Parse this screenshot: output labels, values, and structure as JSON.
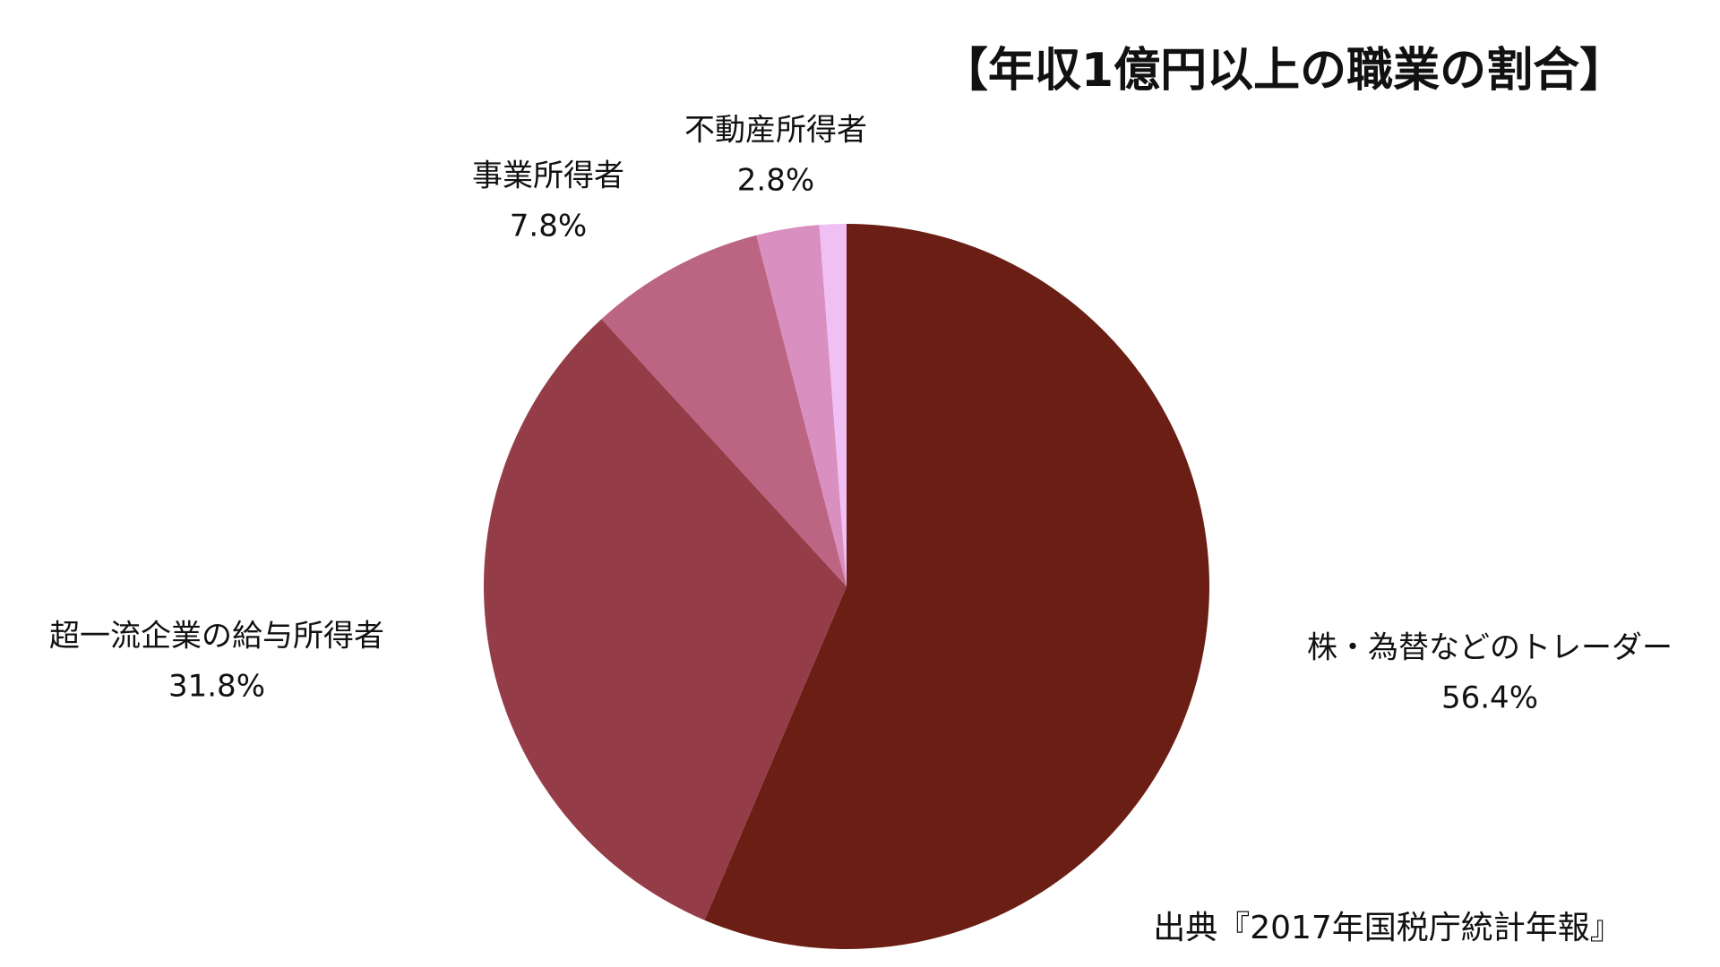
{
  "chart_data": {
    "type": "pie",
    "title": "【年収1億円以上の職業の割合】",
    "source": "出典『2017年国税庁統計年報』",
    "categories": [
      "株・為替などのトレーダー",
      "超一流企業の給与所得者",
      "事業所得者",
      "不動産所得者",
      null
    ],
    "values": [
      56.4,
      31.8,
      7.8,
      2.8,
      1.2
    ],
    "value_labels": [
      "56.4%",
      "31.8%",
      "7.8%",
      "2.8%",
      null
    ],
    "colors": [
      "#6b1f14",
      "#943d48",
      "#bc6583",
      "#d98fc0",
      "#f0c0f5"
    ]
  }
}
